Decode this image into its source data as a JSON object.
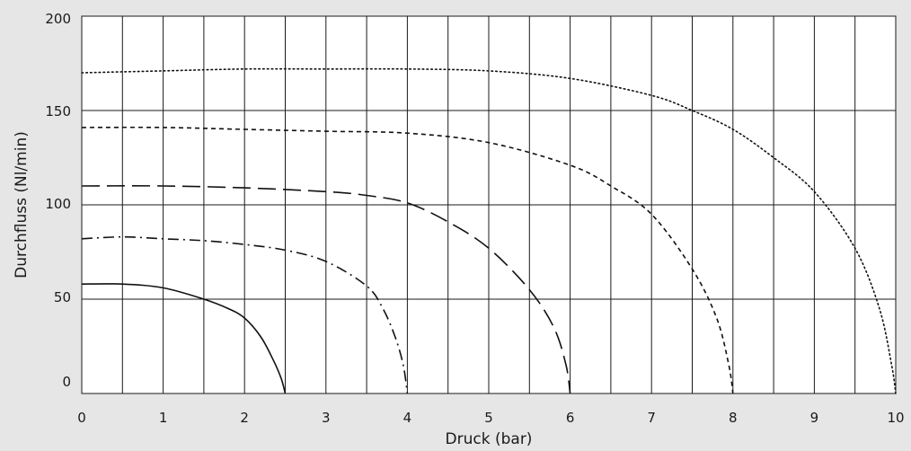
{
  "chart_data": {
    "type": "line",
    "xlabel": "Druck (bar)",
    "ylabel": "Durchfluss (Nl/min)",
    "xlim": [
      0,
      10
    ],
    "ylim": [
      0,
      200
    ],
    "x_ticks": [
      "0",
      "1",
      "2",
      "3",
      "4",
      "5",
      "6",
      "7",
      "8",
      "9",
      "10"
    ],
    "y_ticks": [
      "0",
      "50",
      "100",
      "150",
      "200"
    ],
    "grid": true,
    "legend": "none",
    "background": "#e6e6e6",
    "plot_background": "#ffffff",
    "line_color": "#111111",
    "series": [
      {
        "line_style": "solid",
        "x": [
          0,
          0.5,
          1,
          1.5,
          1.8,
          2.0,
          2.2,
          2.35,
          2.45,
          2.5
        ],
        "y": [
          58,
          58,
          56,
          50,
          45,
          40,
          30,
          18,
          8,
          0
        ]
      },
      {
        "line_style": "dash-dot",
        "x": [
          0,
          0.5,
          1,
          1.5,
          2,
          2.5,
          3,
          3.5,
          3.7,
          3.85,
          3.95,
          4.0
        ],
        "y": [
          82,
          83,
          82,
          81,
          79,
          76,
          70,
          57,
          45,
          30,
          15,
          0
        ]
      },
      {
        "line_style": "dashed",
        "x": [
          0,
          1,
          2,
          3,
          3.5,
          4,
          4.5,
          5,
          5.5,
          5.8,
          5.95,
          6.0
        ],
        "y": [
          110,
          110,
          109,
          107,
          105,
          101,
          91,
          77,
          55,
          35,
          15,
          0
        ]
      },
      {
        "line_style": "short-dashed",
        "x": [
          0,
          1,
          2,
          3,
          4,
          5,
          6,
          6.5,
          7,
          7.5,
          7.8,
          7.95,
          8.0
        ],
        "y": [
          141,
          141,
          140,
          139,
          138,
          133,
          121,
          110,
          95,
          66,
          40,
          15,
          0
        ]
      },
      {
        "line_style": "dotted",
        "x": [
          0,
          1,
          2,
          3,
          4,
          5,
          6,
          7,
          7.5,
          8,
          8.5,
          9,
          9.5,
          9.8,
          9.95,
          10.0
        ],
        "y": [
          170,
          171,
          172,
          172,
          172,
          171,
          167,
          158,
          150,
          140,
          125,
          107,
          77,
          45,
          15,
          0
        ]
      }
    ]
  }
}
